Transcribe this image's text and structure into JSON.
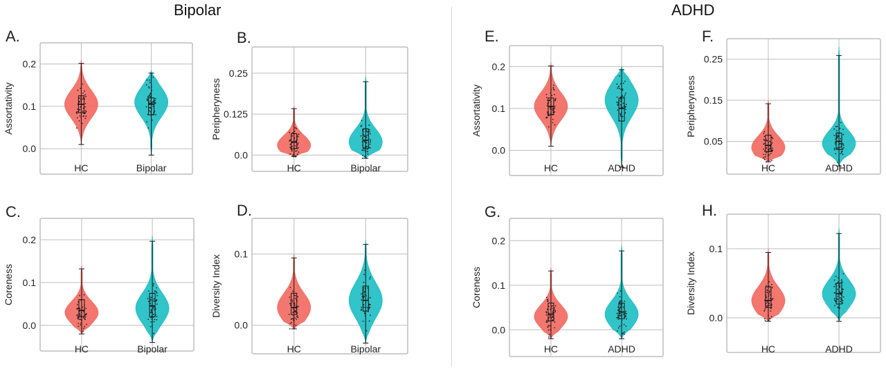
{
  "titles": {
    "left": "Bipolar",
    "right": "ADHD"
  },
  "colors": {
    "hc": "#F26B63",
    "patient": "#1FBFC4",
    "grid": "#bdbdbd",
    "frame": "#9e9e9e"
  },
  "chart_data": [
    {
      "type": "violin",
      "label": "A.",
      "ylabel": "Assortativity",
      "categories": [
        "HC",
        "Bipolar"
      ],
      "yticks": [
        0.0,
        0.1,
        0.2
      ],
      "ytick_labels": [
        "0.0",
        "0.1",
        "0.2"
      ],
      "ylim": [
        -0.06,
        0.25
      ],
      "series": [
        {
          "min": 0.01,
          "q1": 0.085,
          "median": 0.105,
          "q3": 0.125,
          "max": 0.21,
          "mode": 0.105,
          "spread": 0.033
        },
        {
          "min": -0.015,
          "q1": 0.08,
          "median": 0.105,
          "q3": 0.12,
          "max": 0.185,
          "mode": 0.11,
          "spread": 0.035
        }
      ]
    },
    {
      "type": "violin",
      "label": "B.",
      "ylabel": "Peripheryness",
      "categories": [
        "HC",
        "Bipolar"
      ],
      "yticks": [
        0.0,
        0.125,
        0.25
      ],
      "ytick_labels": [
        "0.0",
        "0.125",
        "0.25"
      ],
      "ylim": [
        -0.05,
        0.33
      ],
      "series": [
        {
          "min": -0.005,
          "q1": 0.02,
          "median": 0.04,
          "q3": 0.065,
          "max": 0.15,
          "mode": 0.03,
          "spread": 0.03
        },
        {
          "min": -0.01,
          "q1": 0.02,
          "median": 0.045,
          "q3": 0.08,
          "max": 0.24,
          "mode": 0.04,
          "spread": 0.04
        }
      ]
    },
    {
      "type": "violin",
      "label": "C.",
      "ylabel": "Coreness",
      "categories": [
        "HC",
        "Bipolar"
      ],
      "yticks": [
        0.0,
        0.1,
        0.2
      ],
      "ytick_labels": [
        "0.0",
        "0.1",
        "0.2"
      ],
      "ylim": [
        -0.06,
        0.25
      ],
      "series": [
        {
          "min": -0.02,
          "q1": 0.02,
          "median": 0.035,
          "q3": 0.06,
          "max": 0.14,
          "mode": 0.03,
          "spread": 0.026
        },
        {
          "min": -0.04,
          "q1": 0.02,
          "median": 0.045,
          "q3": 0.075,
          "max": 0.21,
          "mode": 0.04,
          "spread": 0.035
        }
      ]
    },
    {
      "type": "violin",
      "label": "D.",
      "ylabel": "Diversity Index",
      "categories": [
        "HC",
        "Bipolar"
      ],
      "yticks": [
        0.0,
        0.1
      ],
      "ytick_labels": [
        "0.0",
        "0.1"
      ],
      "ylim": [
        -0.04,
        0.15
      ],
      "series": [
        {
          "min": -0.005,
          "q1": 0.015,
          "median": 0.025,
          "q3": 0.045,
          "max": 0.1,
          "mode": 0.025,
          "spread": 0.02
        },
        {
          "min": -0.025,
          "q1": 0.02,
          "median": 0.035,
          "q3": 0.055,
          "max": 0.12,
          "mode": 0.035,
          "spread": 0.025
        }
      ]
    },
    {
      "type": "violin",
      "label": "E.",
      "ylabel": "Assortativity",
      "categories": [
        "HC",
        "ADHD"
      ],
      "yticks": [
        0.0,
        0.1,
        0.2
      ],
      "ytick_labels": [
        "0.0",
        "0.1",
        "0.2"
      ],
      "ylim": [
        -0.06,
        0.25
      ],
      "series": [
        {
          "min": 0.01,
          "q1": 0.085,
          "median": 0.105,
          "q3": 0.125,
          "max": 0.21,
          "mode": 0.105,
          "spread": 0.033
        },
        {
          "min": -0.04,
          "q1": 0.07,
          "median": 0.1,
          "q3": 0.125,
          "max": 0.2,
          "mode": 0.12,
          "spread": 0.04
        }
      ]
    },
    {
      "type": "violin",
      "label": "F.",
      "ylabel": "Peripheryness",
      "categories": [
        "HC",
        "ADHD"
      ],
      "yticks": [
        0.05,
        0.15,
        0.25
      ],
      "ytick_labels": [
        "0.05",
        "0.15",
        "0.25"
      ],
      "ylim": [
        -0.03,
        0.3
      ],
      "series": [
        {
          "min": 0.0,
          "q1": 0.025,
          "median": 0.04,
          "q3": 0.065,
          "max": 0.15,
          "mode": 0.035,
          "spread": 0.028
        },
        {
          "min": -0.01,
          "q1": 0.03,
          "median": 0.05,
          "q3": 0.07,
          "max": 0.28,
          "mode": 0.045,
          "spread": 0.03
        }
      ]
    },
    {
      "type": "violin",
      "label": "G.",
      "ylabel": "Coreness",
      "categories": [
        "HC",
        "ADHD"
      ],
      "yticks": [
        0.0,
        0.1,
        0.2
      ],
      "ytick_labels": [
        "0.0",
        "0.1",
        "0.2"
      ],
      "ylim": [
        -0.06,
        0.25
      ],
      "series": [
        {
          "min": -0.02,
          "q1": 0.02,
          "median": 0.035,
          "q3": 0.06,
          "max": 0.14,
          "mode": 0.03,
          "spread": 0.026
        },
        {
          "min": -0.02,
          "q1": 0.025,
          "median": 0.04,
          "q3": 0.06,
          "max": 0.19,
          "mode": 0.035,
          "spread": 0.03
        }
      ]
    },
    {
      "type": "violin",
      "label": "H.",
      "ylabel": "Diversity Index",
      "categories": [
        "HC",
        "ADHD"
      ],
      "yticks": [
        0.0,
        0.1
      ],
      "ytick_labels": [
        "0.0",
        "0.1"
      ],
      "ylim": [
        -0.05,
        0.15
      ],
      "series": [
        {
          "min": -0.005,
          "q1": 0.015,
          "median": 0.025,
          "q3": 0.045,
          "max": 0.1,
          "mode": 0.025,
          "spread": 0.02
        },
        {
          "min": -0.005,
          "q1": 0.02,
          "median": 0.035,
          "q3": 0.05,
          "max": 0.13,
          "mode": 0.035,
          "spread": 0.02
        }
      ]
    }
  ]
}
